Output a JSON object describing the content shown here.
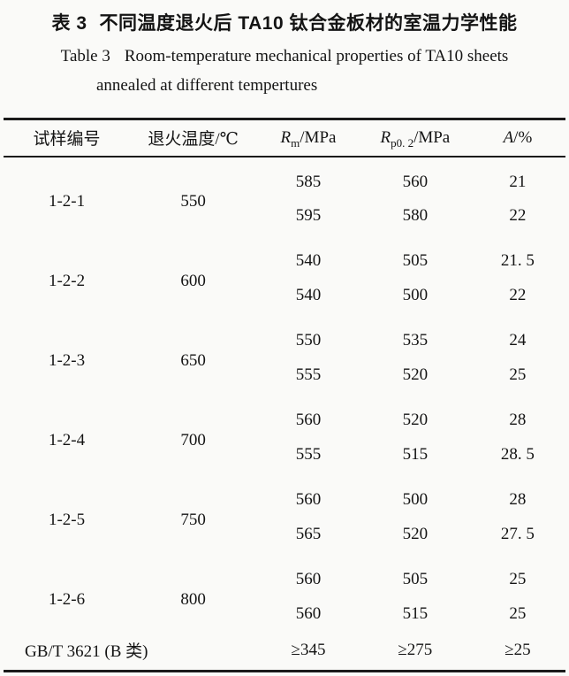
{
  "caption": {
    "cn_label": "表 3",
    "cn_text": "不同温度退火后 TA10 钛合金板材的室温力学性能",
    "en_label": "Table 3",
    "en_text": "Room-temperature mechanical properties of TA10 sheets",
    "en_line2": "annealed at different tempertures"
  },
  "table": {
    "headers": {
      "sample_id": "试样编号",
      "anneal_temp": "退火温度/℃",
      "rm": {
        "sym": "R",
        "sub": "m",
        "unit": "/MPa"
      },
      "rp": {
        "sym": "R",
        "sub": "p0. 2",
        "unit": "/MPa"
      },
      "a": {
        "sym": "A",
        "unit": "/%"
      }
    },
    "groups": [
      {
        "id": "1-2-1",
        "temp": "550",
        "rows": [
          [
            "585",
            "560",
            "21"
          ],
          [
            "595",
            "580",
            "22"
          ]
        ]
      },
      {
        "id": "1-2-2",
        "temp": "600",
        "rows": [
          [
            "540",
            "505",
            "21. 5"
          ],
          [
            "540",
            "500",
            "22"
          ]
        ]
      },
      {
        "id": "1-2-3",
        "temp": "650",
        "rows": [
          [
            "550",
            "535",
            "24"
          ],
          [
            "555",
            "520",
            "25"
          ]
        ]
      },
      {
        "id": "1-2-4",
        "temp": "700",
        "rows": [
          [
            "560",
            "520",
            "28"
          ],
          [
            "555",
            "515",
            "28. 5"
          ]
        ]
      },
      {
        "id": "1-2-5",
        "temp": "750",
        "rows": [
          [
            "560",
            "500",
            "28"
          ],
          [
            "565",
            "520",
            "27. 5"
          ]
        ]
      },
      {
        "id": "1-2-6",
        "temp": "800",
        "rows": [
          [
            "560",
            "505",
            "25"
          ],
          [
            "560",
            "515",
            "25"
          ]
        ]
      }
    ],
    "footer": {
      "label": "GB/T 3621 (B 类)",
      "rm": "≥345",
      "rp": "≥275",
      "a": "≥25"
    }
  },
  "chart_data": {
    "type": "table",
    "title": "表3 不同温度退火后TA10钛合金板材的室温力学性能 / Table 3 Room-temperature mechanical properties of TA10 sheets annealed at different tempertures",
    "columns": [
      "试样编号",
      "退火温度/℃",
      "Rm/MPa",
      "Rp0.2/MPa",
      "A/%"
    ],
    "rows": [
      [
        "1-2-1",
        550,
        585,
        560,
        21
      ],
      [
        "1-2-1",
        550,
        595,
        580,
        22
      ],
      [
        "1-2-2",
        600,
        540,
        505,
        21.5
      ],
      [
        "1-2-2",
        600,
        540,
        500,
        22
      ],
      [
        "1-2-3",
        650,
        550,
        535,
        24
      ],
      [
        "1-2-3",
        650,
        555,
        520,
        25
      ],
      [
        "1-2-4",
        700,
        560,
        520,
        28
      ],
      [
        "1-2-4",
        700,
        555,
        515,
        28.5
      ],
      [
        "1-2-5",
        750,
        560,
        500,
        28
      ],
      [
        "1-2-5",
        750,
        565,
        520,
        27.5
      ],
      [
        "1-2-6",
        800,
        560,
        505,
        25
      ],
      [
        "1-2-6",
        800,
        560,
        515,
        25
      ],
      [
        "GB/T 3621 (B 类)",
        null,
        "≥345",
        "≥275",
        "≥25"
      ]
    ]
  }
}
